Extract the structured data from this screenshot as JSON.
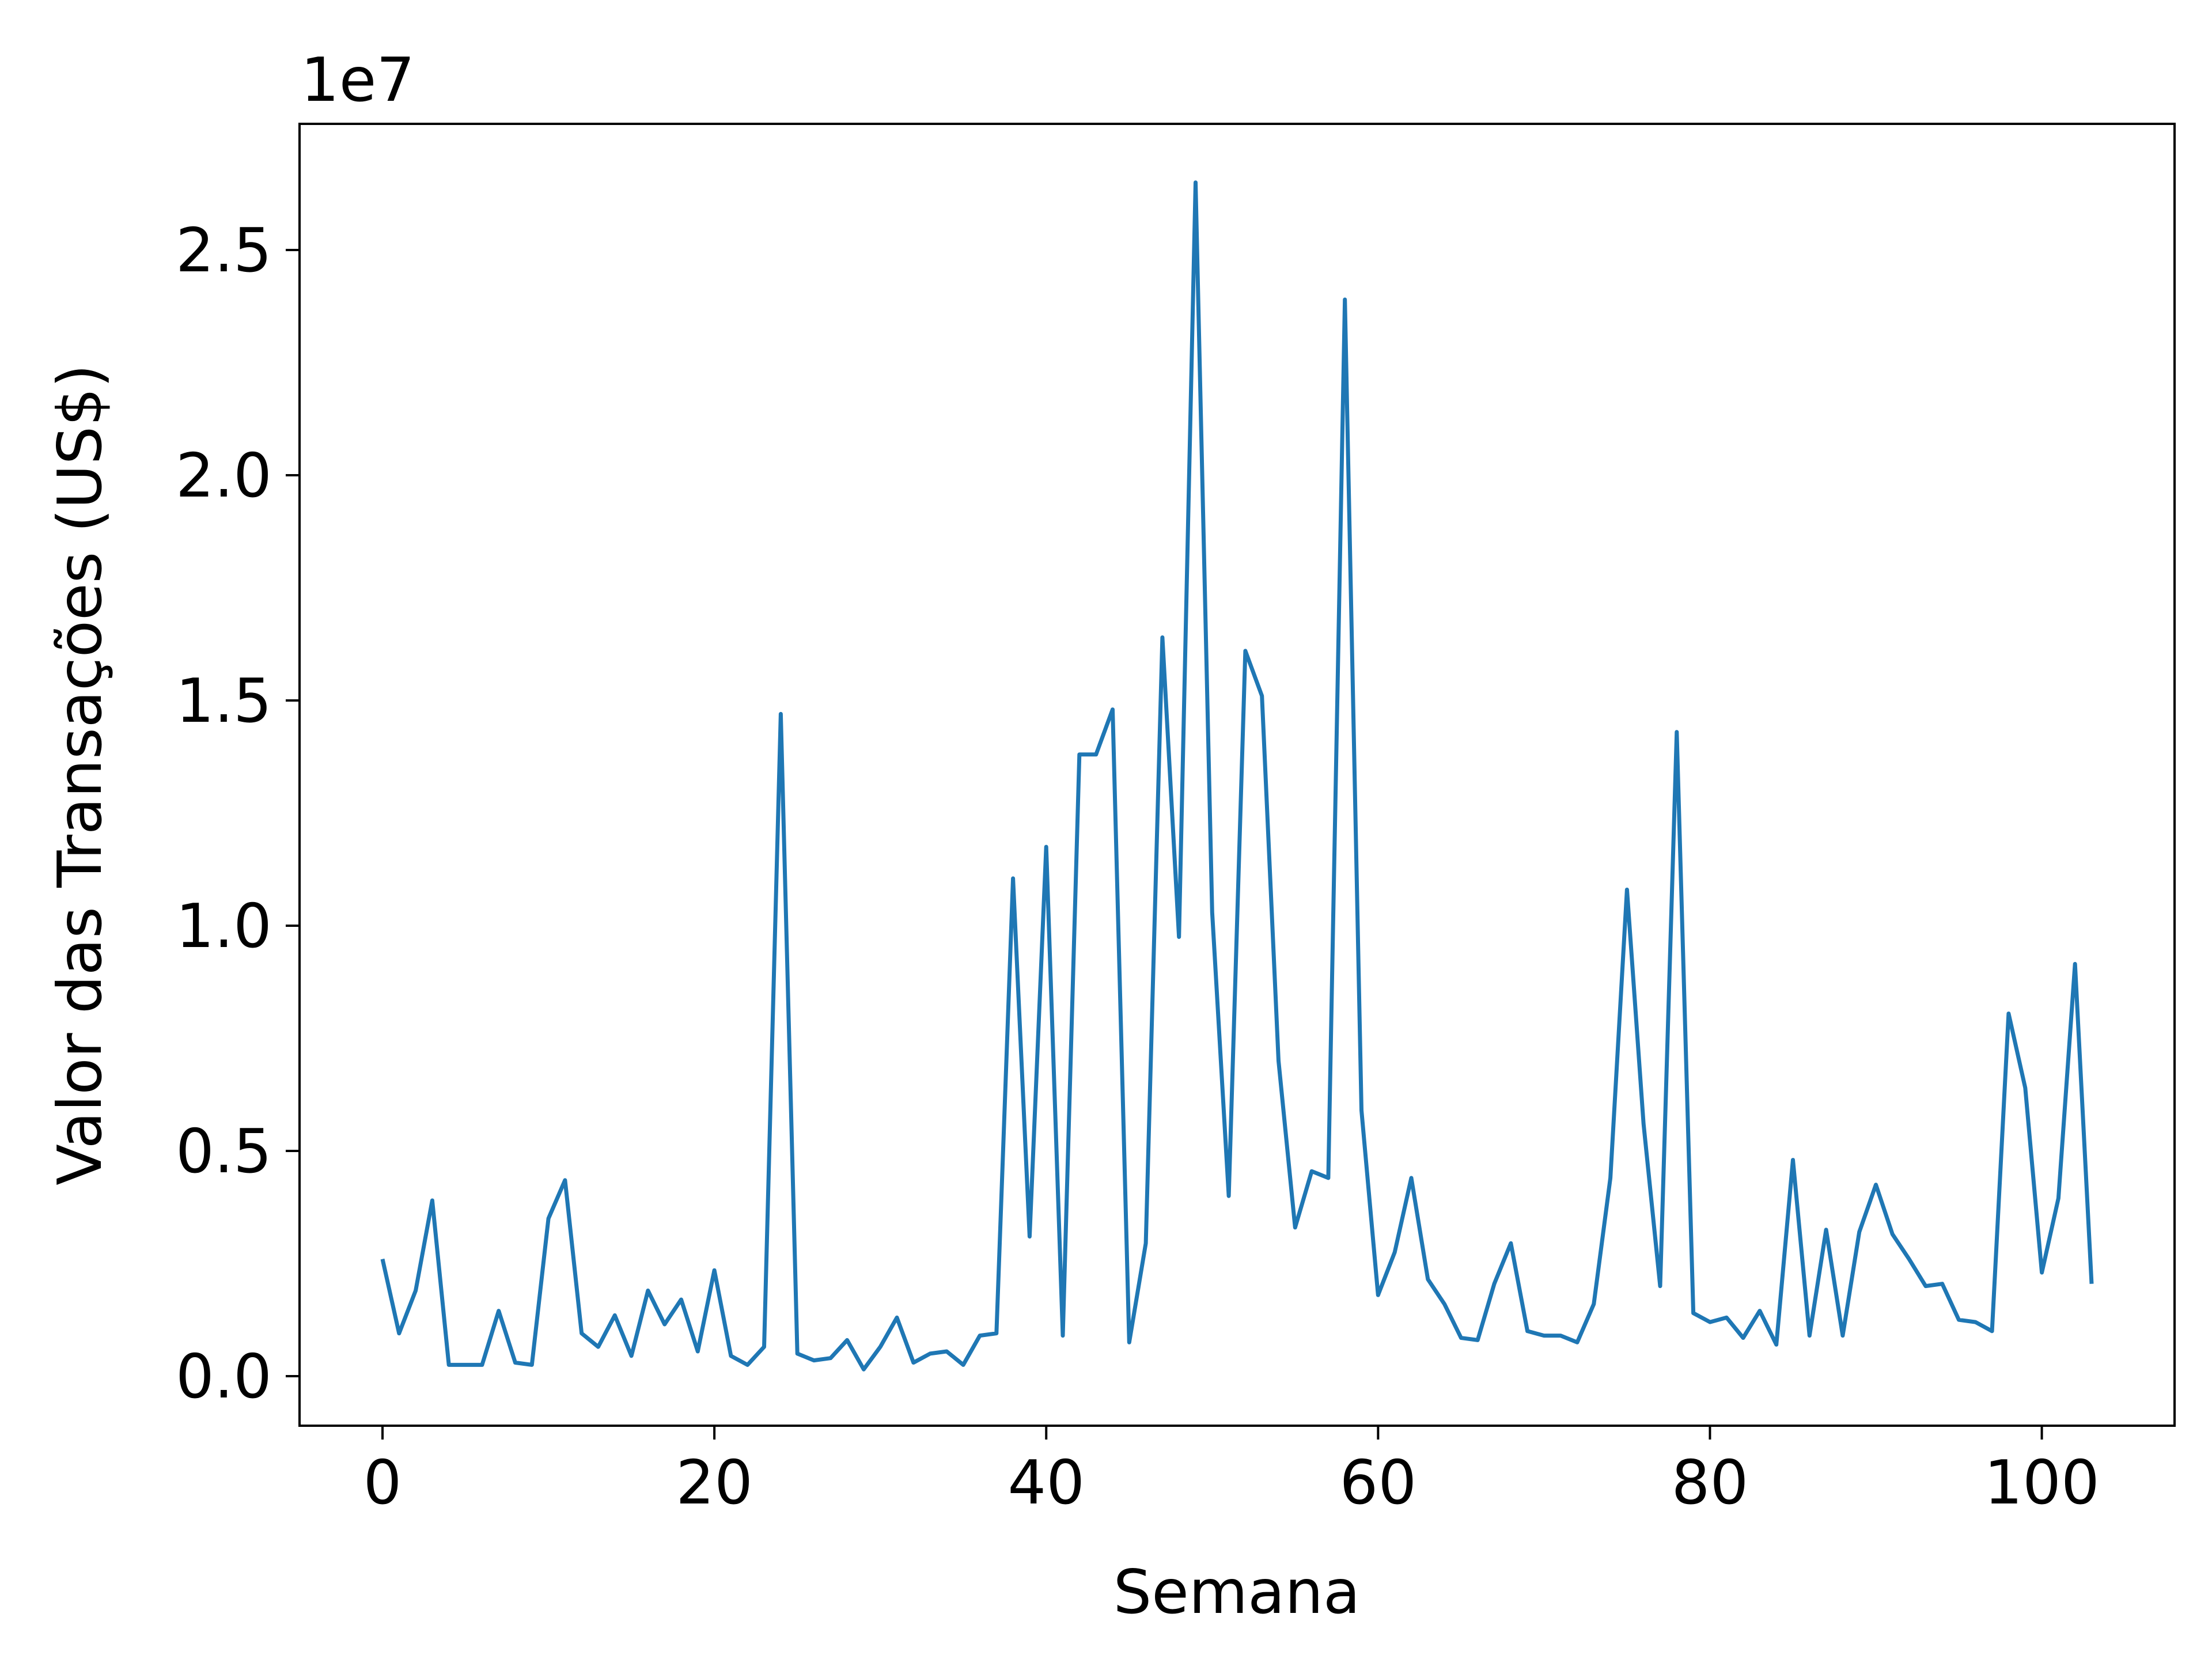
{
  "chart_data": {
    "type": "line",
    "title": "",
    "xlabel": "Semana",
    "ylabel": "Valor das Transações (US$)",
    "offset_text": "1e7",
    "xlim": [
      -5,
      108
    ],
    "ylim": [
      -0.11,
      2.78
    ],
    "x_ticks": [
      0,
      20,
      40,
      60,
      80,
      100
    ],
    "x_tick_labels": [
      "0",
      "20",
      "40",
      "60",
      "80",
      "100"
    ],
    "y_ticks": [
      0.0,
      0.5,
      1.0,
      1.5,
      2.0,
      2.5
    ],
    "y_tick_labels": [
      "0.0",
      "0.5",
      "1.0",
      "1.5",
      "2.0",
      "2.5"
    ],
    "grid": false,
    "legend": "none",
    "line_color": "#1f77b4",
    "series": [
      {
        "x": [
          0,
          1,
          2,
          3,
          4,
          5,
          6,
          7,
          8,
          9,
          10,
          11,
          12,
          13,
          14,
          15,
          16,
          17,
          18,
          19,
          20,
          21,
          22,
          23,
          24,
          25,
          26,
          27,
          28,
          29,
          30,
          31,
          32,
          33,
          34,
          35,
          36,
          37,
          38,
          39,
          40,
          41,
          42,
          43,
          44,
          45,
          46,
          47,
          48,
          49,
          50,
          51,
          52,
          53,
          54,
          55,
          56,
          57,
          58,
          59,
          60,
          61,
          62,
          63,
          64,
          65,
          66,
          67,
          68,
          69,
          70,
          71,
          72,
          73,
          74,
          75,
          76,
          77,
          78,
          79,
          80,
          81,
          82,
          83,
          84,
          85,
          86,
          87,
          88,
          89,
          90,
          91,
          92,
          93,
          94,
          95,
          96,
          97,
          98,
          99,
          100,
          101,
          102,
          103
        ],
        "values": [
          0.26,
          0.095,
          0.19,
          0.39,
          0.025,
          0.025,
          0.025,
          0.145,
          0.03,
          0.025,
          0.35,
          0.435,
          0.095,
          0.065,
          0.135,
          0.045,
          0.19,
          0.115,
          0.17,
          0.055,
          0.235,
          0.045,
          0.025,
          0.065,
          1.47,
          0.05,
          0.035,
          0.04,
          0.08,
          0.015,
          0.065,
          0.13,
          0.03,
          0.05,
          0.055,
          0.025,
          0.09,
          0.095,
          1.105,
          0.31,
          1.175,
          0.09,
          1.38,
          1.38,
          1.48,
          0.075,
          0.295,
          1.64,
          0.975,
          2.65,
          1.03,
          0.4,
          1.61,
          1.51,
          0.7,
          0.33,
          0.455,
          0.44,
          2.39,
          0.59,
          0.18,
          0.275,
          0.44,
          0.215,
          0.16,
          0.085,
          0.08,
          0.205,
          0.295,
          0.1,
          0.09,
          0.09,
          0.075,
          0.16,
          0.44,
          1.08,
          0.56,
          0.2,
          1.43,
          0.14,
          0.12,
          0.13,
          0.085,
          0.145,
          0.07,
          0.48,
          0.09,
          0.325,
          0.09,
          0.32,
          0.425,
          0.315,
          0.26,
          0.2,
          0.205,
          0.125,
          0.12,
          0.1,
          0.805,
          0.64,
          0.23,
          0.395,
          0.915,
          0.205
        ]
      }
    ]
  }
}
